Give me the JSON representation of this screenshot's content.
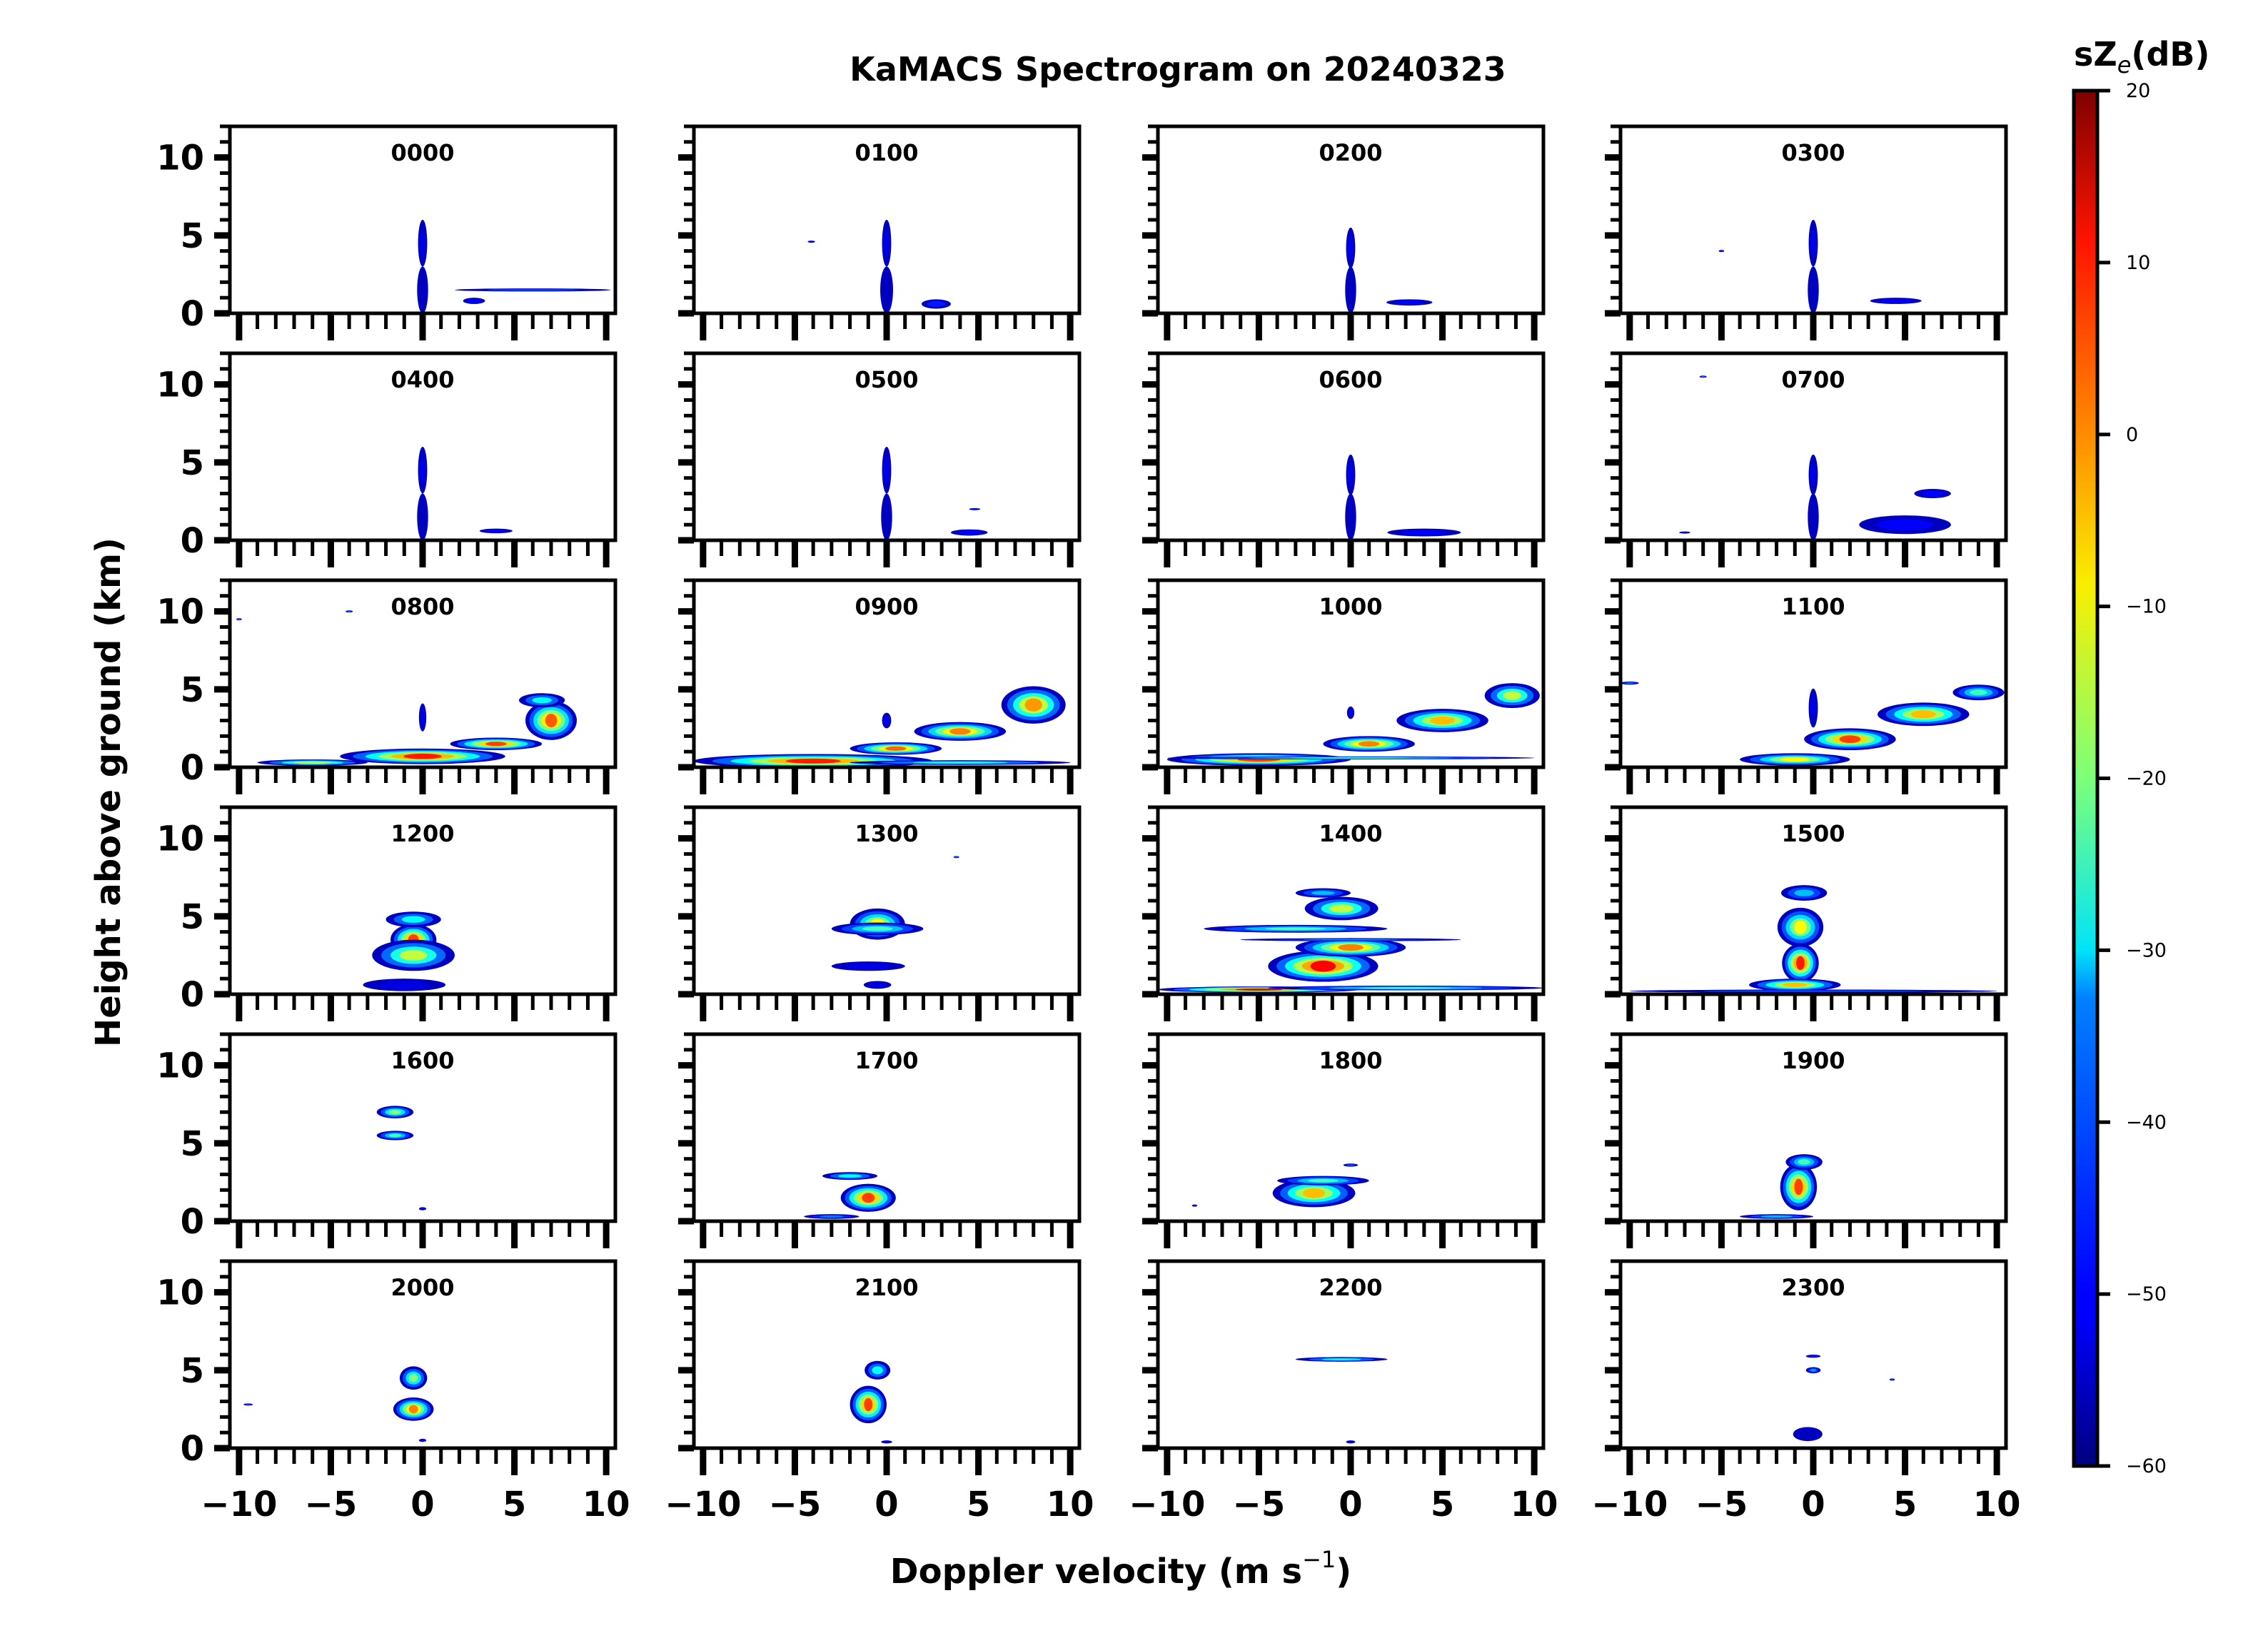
{
  "chart_data": {
    "type": "heatmap",
    "title": "KaMACS Spectrogram on 20240323",
    "xlabel": "Doppler velocity (m s",
    "xlabel_superscript": "−1",
    "xlabel_close": ")",
    "ylabel": "Height above ground (km)",
    "xlim": [
      -10.5,
      10.5
    ],
    "ylim": [
      0,
      12
    ],
    "xticks": [
      -10,
      -5,
      0,
      5,
      10
    ],
    "xtick_labels": [
      "−10",
      "−5",
      "0",
      "5",
      "10"
    ],
    "yticks": [
      0,
      5,
      10
    ],
    "ytick_labels": [
      "0",
      "5",
      "10"
    ],
    "grid": false,
    "colorbar": {
      "label_main": "sZ",
      "label_sub": "e",
      "label_unit": "(dB)",
      "range": [
        -60,
        20
      ],
      "colormap": "jet",
      "ticks": [
        20,
        10,
        0,
        -10,
        -20,
        -30,
        -40,
        -50,
        -60
      ],
      "tick_labels": [
        "20",
        "10",
        "0",
        "−10",
        "−20",
        "−30",
        "−40",
        "−50",
        "−60"
      ]
    },
    "panels": [
      {
        "label": "0000",
        "echoes": [
          {
            "v": 0,
            "h": 1.5,
            "dv": 0.6,
            "dh": 3,
            "db": -55
          },
          {
            "v": 0,
            "h": 4.5,
            "dv": 0.5,
            "dh": 3,
            "db": -52
          },
          {
            "v": 6,
            "h": 1.5,
            "dv": 8.5,
            "dh": 0.2,
            "db": -45
          },
          {
            "v": 2.8,
            "h": 0.8,
            "dv": 1.2,
            "dh": 0.4,
            "db": -50
          }
        ]
      },
      {
        "label": "0100",
        "echoes": [
          {
            "v": 0,
            "h": 1.5,
            "dv": 0.7,
            "dh": 3,
            "db": -55
          },
          {
            "v": 0,
            "h": 4.5,
            "dv": 0.5,
            "dh": 3,
            "db": -52
          },
          {
            "v": 2.7,
            "h": 0.6,
            "dv": 1.6,
            "dh": 0.6,
            "db": -48
          },
          {
            "v": -4.1,
            "h": 4.6,
            "dv": 0.4,
            "dh": 0.1,
            "db": -50
          }
        ]
      },
      {
        "label": "0200",
        "echoes": [
          {
            "v": 0,
            "h": 1.5,
            "dv": 0.6,
            "dh": 3,
            "db": -55
          },
          {
            "v": 0,
            "h": 4.2,
            "dv": 0.5,
            "dh": 2.6,
            "db": -52
          },
          {
            "v": 3.2,
            "h": 0.7,
            "dv": 2.5,
            "dh": 0.4,
            "db": -50
          }
        ]
      },
      {
        "label": "0300",
        "echoes": [
          {
            "v": 0,
            "h": 1.5,
            "dv": 0.6,
            "dh": 3,
            "db": -55
          },
          {
            "v": 0,
            "h": 4.5,
            "dv": 0.5,
            "dh": 3,
            "db": -52
          },
          {
            "v": 4.5,
            "h": 0.8,
            "dv": 2.8,
            "dh": 0.4,
            "db": -50
          },
          {
            "v": -5,
            "h": 4,
            "dv": 0.3,
            "dh": 0.1,
            "db": -48
          }
        ]
      },
      {
        "label": "0400",
        "echoes": [
          {
            "v": 0,
            "h": 1.5,
            "dv": 0.6,
            "dh": 3,
            "db": -55
          },
          {
            "v": 0,
            "h": 4.5,
            "dv": 0.5,
            "dh": 3,
            "db": -52
          },
          {
            "v": 4,
            "h": 0.6,
            "dv": 1.8,
            "dh": 0.3,
            "db": -50
          }
        ]
      },
      {
        "label": "0500",
        "echoes": [
          {
            "v": 0,
            "h": 1.5,
            "dv": 0.6,
            "dh": 3,
            "db": -55
          },
          {
            "v": 0,
            "h": 4.5,
            "dv": 0.5,
            "dh": 3,
            "db": -52
          },
          {
            "v": 4.8,
            "h": 2,
            "dv": 0.6,
            "dh": 0.1,
            "db": -48
          },
          {
            "v": 4.5,
            "h": 0.5,
            "dv": 2,
            "dh": 0.4,
            "db": -50
          }
        ]
      },
      {
        "label": "0600",
        "echoes": [
          {
            "v": 0,
            "h": 1.5,
            "dv": 0.6,
            "dh": 3,
            "db": -55
          },
          {
            "v": 0,
            "h": 4.2,
            "dv": 0.5,
            "dh": 2.6,
            "db": -52
          },
          {
            "v": 4,
            "h": 0.5,
            "dv": 4,
            "dh": 0.5,
            "db": -50
          }
        ]
      },
      {
        "label": "0700",
        "echoes": [
          {
            "v": 0,
            "h": 1.5,
            "dv": 0.6,
            "dh": 3,
            "db": -55
          },
          {
            "v": 0,
            "h": 4.2,
            "dv": 0.5,
            "dh": 2.6,
            "db": -52
          },
          {
            "v": 6.5,
            "h": 3,
            "dv": 2,
            "dh": 0.6,
            "db": -50
          },
          {
            "v": 5,
            "h": 1,
            "dv": 5,
            "dh": 1.2,
            "db": -50
          },
          {
            "v": -6,
            "h": 10.5,
            "dv": 0.4,
            "dh": 0.1,
            "db": -40
          },
          {
            "v": -7,
            "h": 0.5,
            "dv": 0.6,
            "dh": 0.1,
            "db": -50
          }
        ]
      },
      {
        "label": "0800",
        "echoes": [
          {
            "v": 0,
            "h": 0.7,
            "dv": 9,
            "dh": 1,
            "db": 8
          },
          {
            "v": 4,
            "h": 1.5,
            "dv": 5,
            "dh": 0.8,
            "db": 5
          },
          {
            "v": 7,
            "h": 3,
            "dv": 2.8,
            "dh": 2.5,
            "db": 3
          },
          {
            "v": 6.5,
            "h": 4.3,
            "dv": 2.5,
            "dh": 0.9,
            "db": -30
          },
          {
            "v": -6,
            "h": 0.3,
            "dv": 6,
            "dh": 0.4,
            "db": -15
          },
          {
            "v": 0,
            "h": 3.2,
            "dv": 0.4,
            "dh": 1.8,
            "db": -52
          },
          {
            "v": -4,
            "h": 10,
            "dv": 0.4,
            "dh": 0.1,
            "db": -40
          },
          {
            "v": -10,
            "h": 9.5,
            "dv": 0.3,
            "dh": 0.1,
            "db": -40
          }
        ]
      },
      {
        "label": "0900",
        "echoes": [
          {
            "v": -4,
            "h": 0.4,
            "dv": 13,
            "dh": 0.9,
            "db": 8
          },
          {
            "v": 0.5,
            "h": 1.2,
            "dv": 5,
            "dh": 0.8,
            "db": 2
          },
          {
            "v": 4,
            "h": 2.3,
            "dv": 5,
            "dh": 1.2,
            "db": 0
          },
          {
            "v": 8,
            "h": 4,
            "dv": 3.5,
            "dh": 2.4,
            "db": -2
          },
          {
            "v": 4,
            "h": 0.3,
            "dv": 12,
            "dh": 0.3,
            "db": -28
          },
          {
            "v": 0,
            "h": 3,
            "dv": 0.5,
            "dh": 1,
            "db": -52
          }
        ]
      },
      {
        "label": "1000",
        "echoes": [
          {
            "v": -5,
            "h": 0.5,
            "dv": 10,
            "dh": 0.8,
            "db": 5
          },
          {
            "v": 1,
            "h": 1.5,
            "dv": 5,
            "dh": 1,
            "db": 0
          },
          {
            "v": 5,
            "h": 3,
            "dv": 5,
            "dh": 1.5,
            "db": -5
          },
          {
            "v": 8.8,
            "h": 4.6,
            "dv": 3,
            "dh": 1.6,
            "db": -15
          },
          {
            "v": 0,
            "h": 0.6,
            "dv": 20,
            "dh": 0.2,
            "db": -25
          },
          {
            "v": 0,
            "h": 3.5,
            "dv": 0.4,
            "dh": 0.8,
            "db": -52
          }
        ]
      },
      {
        "label": "1100",
        "echoes": [
          {
            "v": -1,
            "h": 0.5,
            "dv": 6,
            "dh": 0.8,
            "db": -10
          },
          {
            "v": 2,
            "h": 1.8,
            "dv": 5,
            "dh": 1.4,
            "db": 5
          },
          {
            "v": 6,
            "h": 3.4,
            "dv": 5,
            "dh": 1.5,
            "db": -5
          },
          {
            "v": 9,
            "h": 4.8,
            "dv": 2.8,
            "dh": 1,
            "db": -25
          },
          {
            "v": 0,
            "h": 3.8,
            "dv": 0.5,
            "dh": 2.5,
            "db": -52
          },
          {
            "v": -10,
            "h": 5.4,
            "dv": 1,
            "dh": 0.2,
            "db": -40
          }
        ]
      },
      {
        "label": "1200",
        "echoes": [
          {
            "v": -0.5,
            "h": 3.5,
            "dv": 2.5,
            "dh": 2,
            "db": 5
          },
          {
            "v": -0.5,
            "h": 2.5,
            "dv": 4.5,
            "dh": 2,
            "db": -15
          },
          {
            "v": -0.5,
            "h": 4.8,
            "dv": 3,
            "dh": 1,
            "db": -30
          },
          {
            "v": -1,
            "h": 0.6,
            "dv": 4.5,
            "dh": 0.8,
            "db": -52
          }
        ]
      },
      {
        "label": "1300",
        "echoes": [
          {
            "v": -0.5,
            "h": 4.5,
            "dv": 3,
            "dh": 2,
            "db": -10
          },
          {
            "v": -0.5,
            "h": 4.2,
            "dv": 5,
            "dh": 0.8,
            "db": -25
          },
          {
            "v": -1,
            "h": 1.8,
            "dv": 4,
            "dh": 0.6,
            "db": -52
          },
          {
            "v": -0.5,
            "h": 0.6,
            "dv": 1.5,
            "dh": 0.5,
            "db": -52
          },
          {
            "v": 3.8,
            "h": 8.8,
            "dv": 0.3,
            "dh": 0.1,
            "db": -40
          }
        ]
      },
      {
        "label": "1400",
        "echoes": [
          {
            "v": -1.5,
            "h": 1.8,
            "dv": 6,
            "dh": 2,
            "db": 10
          },
          {
            "v": 0,
            "h": 3,
            "dv": 6,
            "dh": 1.2,
            "db": 0
          },
          {
            "v": -3,
            "h": 4.2,
            "dv": 10,
            "dh": 0.5,
            "db": -25
          },
          {
            "v": -0.5,
            "h": 5.5,
            "dv": 4,
            "dh": 1.5,
            "db": -15
          },
          {
            "v": -1.5,
            "h": 6.5,
            "dv": 3,
            "dh": 0.6,
            "db": -35
          },
          {
            "v": 0,
            "h": 3.5,
            "dv": 12,
            "dh": 0.2,
            "db": -40
          },
          {
            "v": -5,
            "h": 0.3,
            "dv": 11,
            "dh": 0.4,
            "db": 10
          },
          {
            "v": 3,
            "h": 0.4,
            "dv": 15,
            "dh": 0.3,
            "db": -25
          }
        ]
      },
      {
        "label": "1500",
        "echoes": [
          {
            "v": -0.7,
            "h": 2,
            "dv": 2,
            "dh": 2.5,
            "db": 8
          },
          {
            "v": -0.7,
            "h": 4.3,
            "dv": 2.5,
            "dh": 2.5,
            "db": -10
          },
          {
            "v": -0.5,
            "h": 6.5,
            "dv": 2.5,
            "dh": 1,
            "db": -35
          },
          {
            "v": -1,
            "h": 0.6,
            "dv": 5,
            "dh": 0.8,
            "db": -5
          },
          {
            "v": 0,
            "h": 0.2,
            "dv": 20,
            "dh": 0.2,
            "db": -45
          }
        ]
      },
      {
        "label": "1600",
        "echoes": [
          {
            "v": -1.5,
            "h": 7,
            "dv": 2,
            "dh": 0.8,
            "db": -20
          },
          {
            "v": -1.5,
            "h": 5.5,
            "dv": 2,
            "dh": 0.6,
            "db": -25
          },
          {
            "v": 0,
            "h": 0.8,
            "dv": 0.4,
            "dh": 0.2,
            "db": -52
          }
        ]
      },
      {
        "label": "1700",
        "echoes": [
          {
            "v": -1,
            "h": 1.5,
            "dv": 3,
            "dh": 1.8,
            "db": 5
          },
          {
            "v": -2,
            "h": 2.9,
            "dv": 3,
            "dh": 0.5,
            "db": -30
          },
          {
            "v": -3,
            "h": 0.3,
            "dv": 3,
            "dh": 0.3,
            "db": -40
          }
        ]
      },
      {
        "label": "1800",
        "echoes": [
          {
            "v": -2,
            "h": 1.8,
            "dv": 4.5,
            "dh": 1.8,
            "db": -5
          },
          {
            "v": -1.5,
            "h": 2.6,
            "dv": 5,
            "dh": 0.6,
            "db": -25
          },
          {
            "v": 0,
            "h": 3.6,
            "dv": 0.8,
            "dh": 0.2,
            "db": -45
          },
          {
            "v": -8.5,
            "h": 1,
            "dv": 0.3,
            "dh": 0.1,
            "db": -50
          }
        ]
      },
      {
        "label": "1900",
        "echoes": [
          {
            "v": -0.8,
            "h": 2.2,
            "dv": 2,
            "dh": 3,
            "db": 5
          },
          {
            "v": -0.5,
            "h": 3.8,
            "dv": 2,
            "dh": 1,
            "db": -25
          },
          {
            "v": -2,
            "h": 0.3,
            "dv": 4,
            "dh": 0.3,
            "db": -35
          }
        ]
      },
      {
        "label": "2000",
        "echoes": [
          {
            "v": -0.5,
            "h": 2.5,
            "dv": 2.2,
            "dh": 1.5,
            "db": 0
          },
          {
            "v": -0.5,
            "h": 4.5,
            "dv": 1.5,
            "dh": 1.5,
            "db": -20
          },
          {
            "v": 0,
            "h": 0.5,
            "dv": 0.4,
            "dh": 0.2,
            "db": -52
          },
          {
            "v": -9.5,
            "h": 2.8,
            "dv": 0.5,
            "dh": 0.1,
            "db": -45
          }
        ]
      },
      {
        "label": "2100",
        "echoes": [
          {
            "v": -1,
            "h": 2.8,
            "dv": 2,
            "dh": 2.4,
            "db": 5
          },
          {
            "v": -0.5,
            "h": 5,
            "dv": 1.4,
            "dh": 1.2,
            "db": -30
          },
          {
            "v": 0,
            "h": 0.4,
            "dv": 0.6,
            "dh": 0.2,
            "db": -52
          }
        ]
      },
      {
        "label": "2200",
        "echoes": [
          {
            "v": -0.5,
            "h": 5.7,
            "dv": 5,
            "dh": 0.3,
            "db": -30
          },
          {
            "v": 0,
            "h": 0.4,
            "dv": 0.5,
            "dh": 0.2,
            "db": -52
          }
        ]
      },
      {
        "label": "2300",
        "echoes": [
          {
            "v": -0.3,
            "h": 0.9,
            "dv": 1.6,
            "dh": 0.9,
            "db": -55
          },
          {
            "v": 0,
            "h": 5,
            "dv": 0.8,
            "dh": 0.4,
            "db": -38
          },
          {
            "v": 0,
            "h": 5.9,
            "dv": 0.8,
            "dh": 0.2,
            "db": -48
          },
          {
            "v": 4.3,
            "h": 4.4,
            "dv": 0.3,
            "dh": 0.1,
            "db": -45
          }
        ]
      }
    ]
  }
}
